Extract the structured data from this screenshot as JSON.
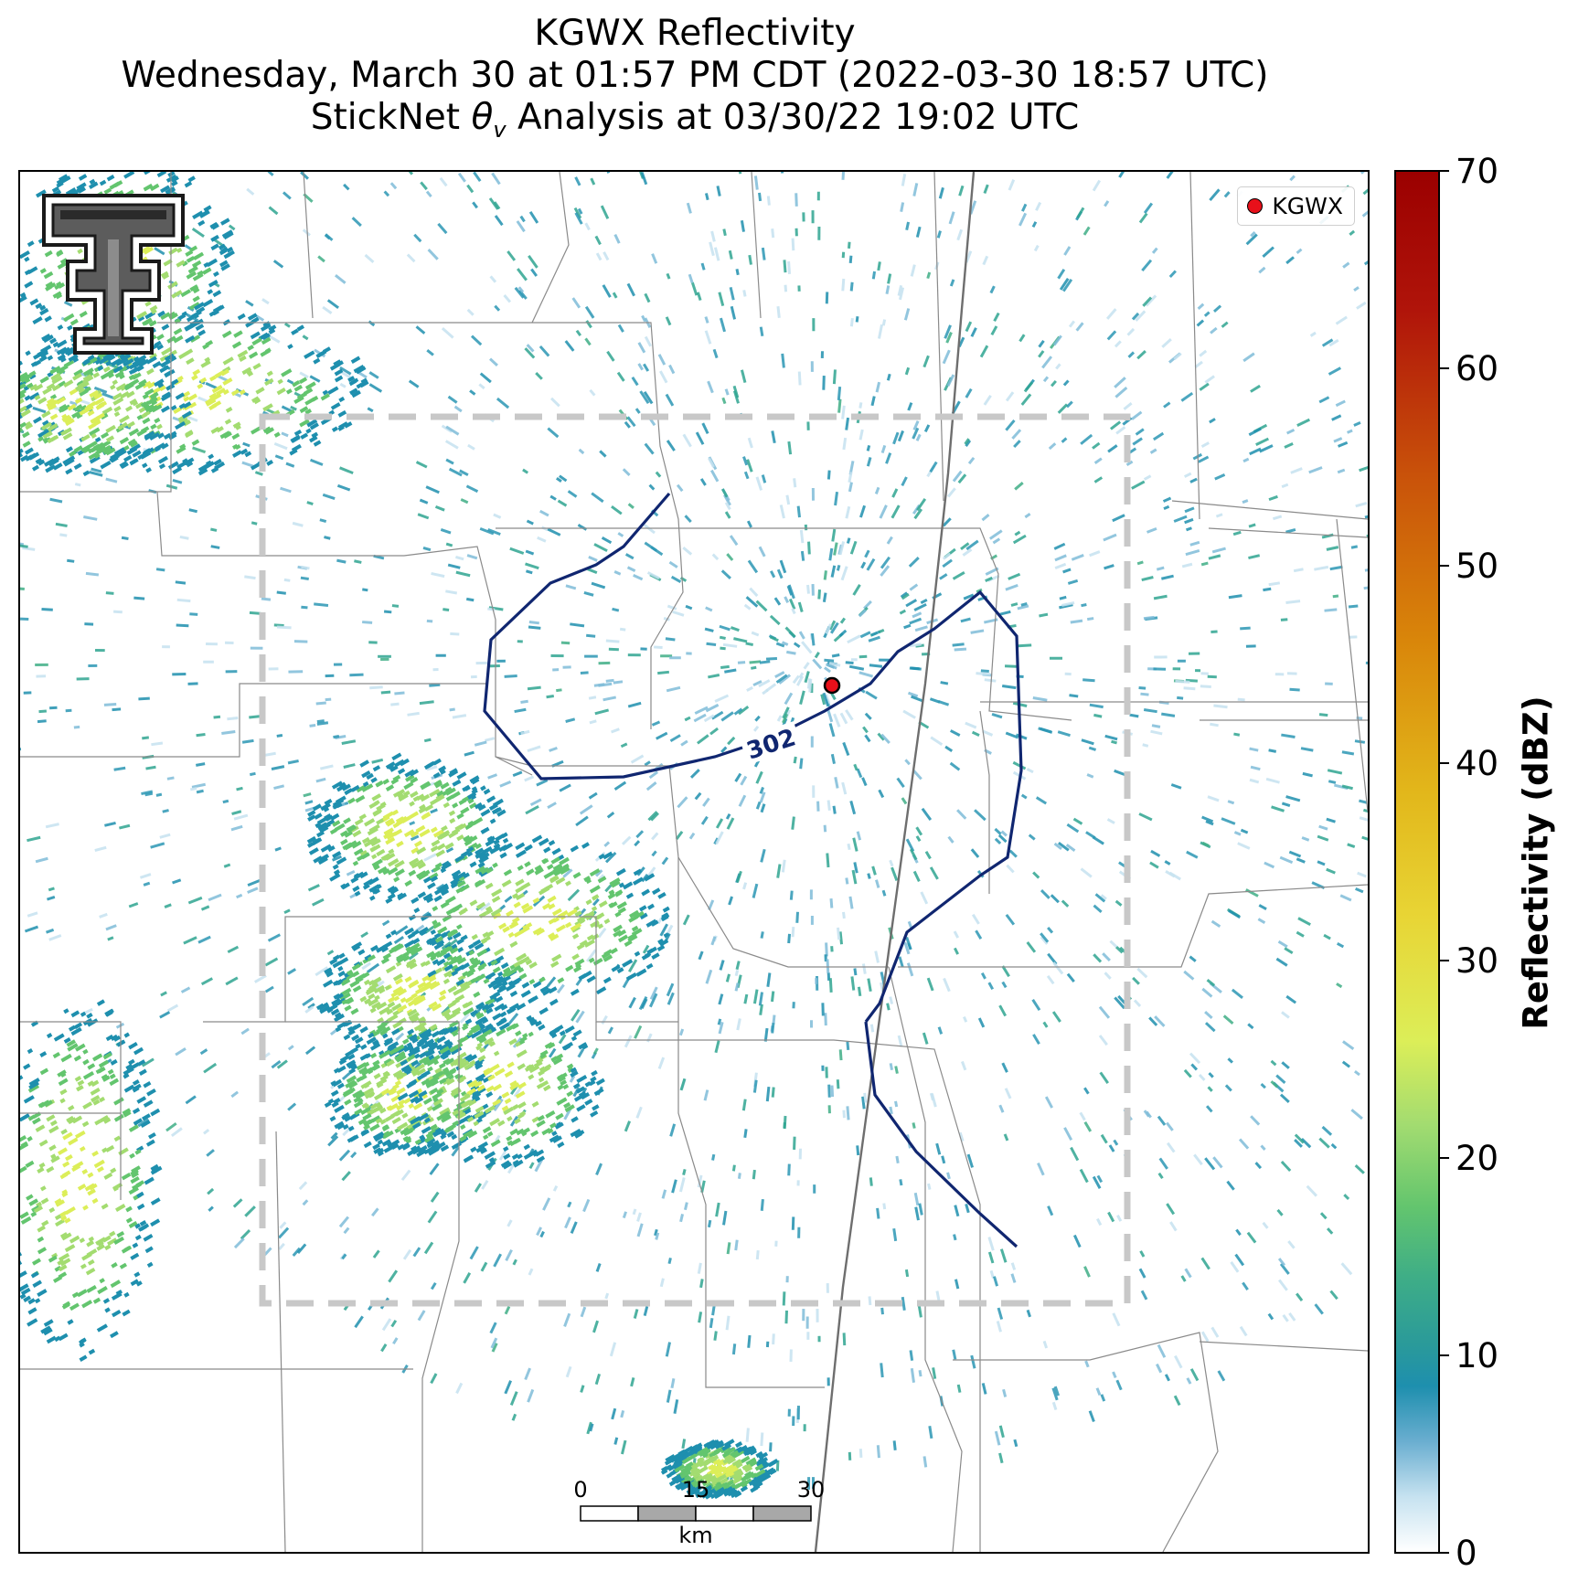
{
  "title": {
    "line1": "KGWX Reflectivity",
    "line2": "Wednesday, March 30 at 01:57 PM CDT (2022-03-30 18:57 UTC)",
    "line3_prefix": "StickNet ",
    "line3_symbol": "θ",
    "line3_sub": "v",
    "line3_suffix": " Analysis at 03/30/22 19:02 UTC"
  },
  "legend": {
    "label": "KGWX",
    "marker_color": "#e8101a"
  },
  "contour": {
    "label": "302",
    "color": "#102670"
  },
  "scale_bar": {
    "ticks": [
      "0",
      "15",
      "30"
    ],
    "unit": "km"
  },
  "colorbar": {
    "title": "Reflectivity (dBZ)",
    "min": 0,
    "max": 70,
    "tick_labels": [
      "0",
      "10",
      "20",
      "30",
      "40",
      "50",
      "60",
      "70"
    ]
  },
  "domain_box": {
    "style": "dashed",
    "color": "#c8c8c8"
  },
  "logo": {
    "name": "texas-tech-double-t-logo"
  }
}
